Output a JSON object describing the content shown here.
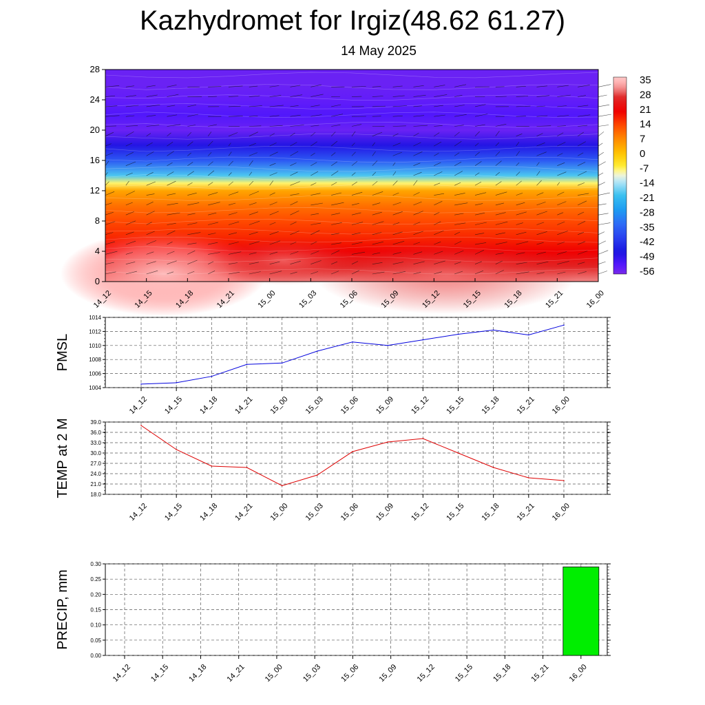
{
  "title": "Kazhydromet for Irgiz(48.62 61.27)",
  "subtitle": "14 May 2025",
  "chart_data": [
    {
      "type": "heatmap",
      "description_id": "vertical-profile",
      "y_ticks": [
        "0",
        "4",
        "8",
        "12",
        "16",
        "20",
        "24",
        "28"
      ],
      "ylim": [
        0,
        28
      ],
      "x_ticks": [
        "14_12",
        "14_15",
        "14_18",
        "14_21",
        "15_00",
        "15_03",
        "15_06",
        "15_09",
        "15_12",
        "15_15",
        "15_18",
        "15_21",
        "16_00"
      ],
      "colorbar_labels": [
        "35",
        "28",
        "21",
        "14",
        "7",
        "0",
        "-7",
        "-14",
        "-21",
        "-28",
        "-35",
        "-42",
        "-49",
        "-56"
      ],
      "colorbar_range": [
        -60,
        38
      ],
      "temperature_profile": {
        "levels": [
          0,
          2,
          4,
          6,
          8,
          10,
          12,
          13,
          14,
          16,
          18,
          20,
          22,
          24,
          26,
          28
        ],
        "values": [
          32,
          27,
          21,
          17,
          14,
          10,
          4,
          -8,
          -20,
          -38,
          -50,
          -58,
          -55,
          -57,
          -58,
          -58
        ]
      },
      "wind_barbs": true
    },
    {
      "type": "line",
      "description_id": "pmsl",
      "ylabel": "PMSL",
      "x": [
        "14_12",
        "14_15",
        "14_18",
        "14_21",
        "15_00",
        "15_03",
        "15_06",
        "15_09",
        "15_12",
        "15_15",
        "15_18",
        "15_21",
        "16_00"
      ],
      "y": [
        1004.5,
        1004.7,
        1005.6,
        1007.3,
        1007.5,
        1009.2,
        1010.5,
        1010.0,
        1010.8,
        1011.6,
        1012.2,
        1011.5,
        1012.9
      ],
      "y_ticks": [
        "1004",
        "1006",
        "1008",
        "1010",
        "1012",
        "1014"
      ],
      "ylim": [
        1004,
        1014
      ],
      "line_color": "#0000dd"
    },
    {
      "type": "line",
      "description_id": "temp",
      "ylabel": "TEMP at 2 M",
      "x": [
        "14_12",
        "14_15",
        "14_18",
        "14_21",
        "15_00",
        "15_03",
        "15_06",
        "15_09",
        "15_12",
        "15_15",
        "15_18",
        "15_21",
        "16_00"
      ],
      "y": [
        38.0,
        31.0,
        26.2,
        25.8,
        20.5,
        23.6,
        30.4,
        33.2,
        34.2,
        30.0,
        25.8,
        22.8,
        22.0
      ],
      "y_ticks": [
        "18.0",
        "21.0",
        "24.0",
        "27.0",
        "30.0",
        "33.0",
        "36.0",
        "39.0"
      ],
      "ylim": [
        18,
        39
      ],
      "line_color": "#dd0000"
    },
    {
      "type": "bar",
      "description_id": "precip",
      "ylabel": "PRECIP, mm",
      "categories": [
        "14_12",
        "14_15",
        "14_18",
        "14_21",
        "15_00",
        "15_03",
        "15_06",
        "15_09",
        "15_12",
        "15_15",
        "15_18",
        "15_21",
        "16_00"
      ],
      "values": [
        0,
        0,
        0,
        0,
        0,
        0,
        0,
        0,
        0,
        0,
        0,
        0,
        0.29
      ],
      "y_ticks": [
        "0.00",
        "0.05",
        "0.10",
        "0.15",
        "0.20",
        "0.25",
        "0.30"
      ],
      "ylim": [
        0,
        0.3
      ],
      "bar_color": "#00ee00"
    }
  ]
}
